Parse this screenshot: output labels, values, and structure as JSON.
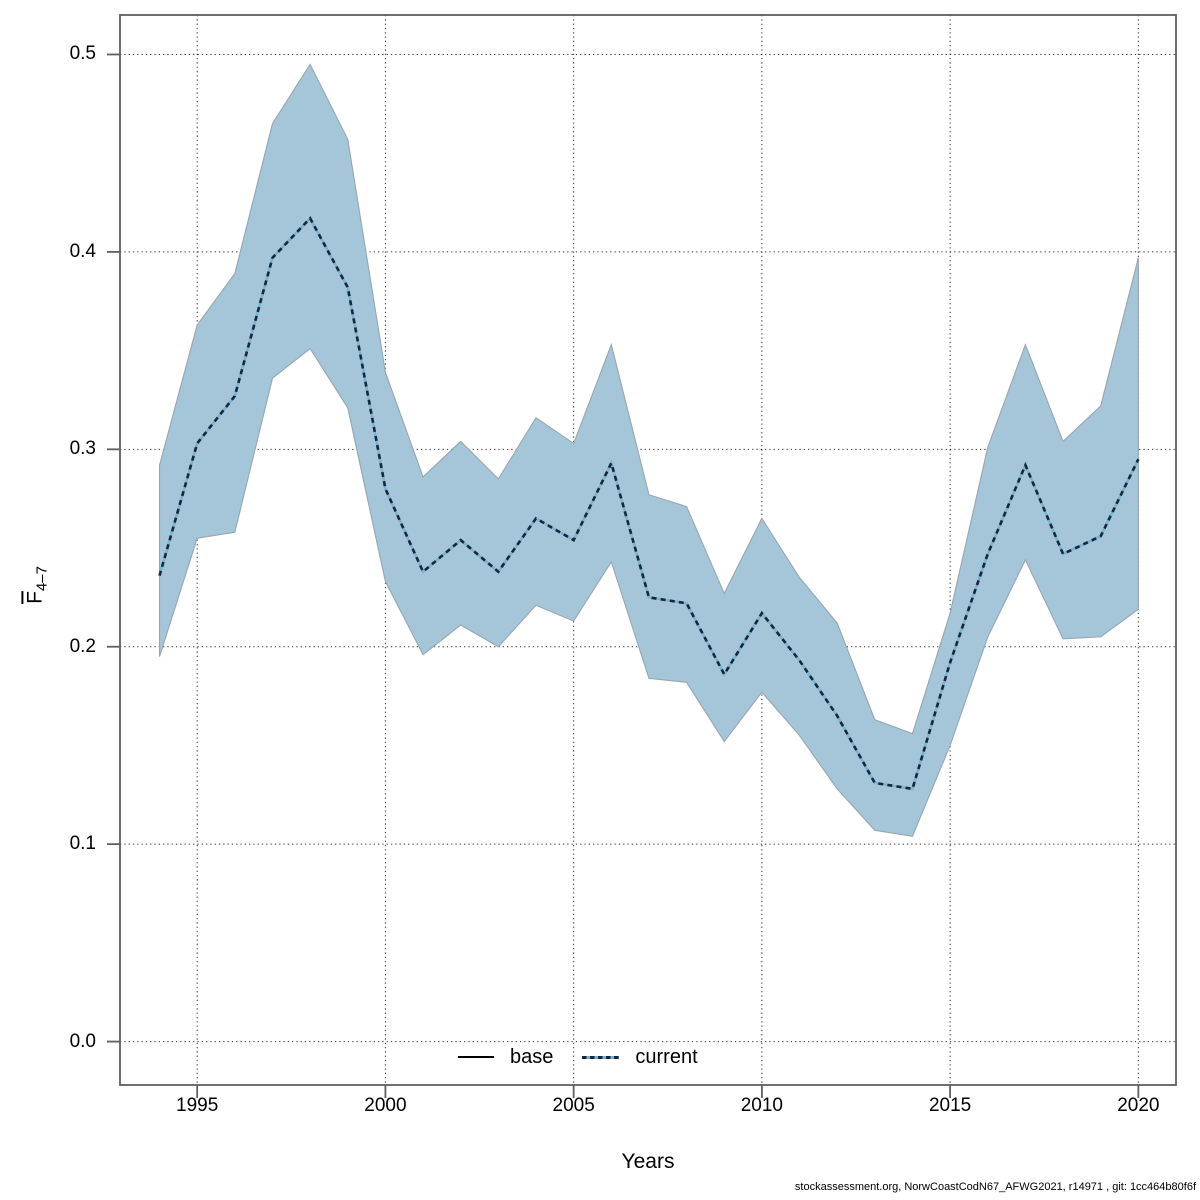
{
  "figure": {
    "footer_text": "stockassessment.org, NorwCoastCodN67_AFWG2021, r14971 , git: 1cc464b80f6f"
  },
  "chart_data": {
    "type": "line",
    "title": "",
    "xlabel": "Years",
    "ylabel_main": "F",
    "ylabel_sub": "4–7",
    "x": [
      1994,
      1995,
      1996,
      1997,
      1998,
      1999,
      2000,
      2001,
      2002,
      2003,
      2004,
      2005,
      2006,
      2007,
      2008,
      2009,
      2010,
      2011,
      2012,
      2013,
      2014,
      2015,
      2016,
      2017,
      2018,
      2019,
      2020
    ],
    "series": [
      {
        "name": "current",
        "style": "dashed",
        "values": [
          0.236,
          0.303,
          0.327,
          0.397,
          0.417,
          0.382,
          0.28,
          0.238,
          0.254,
          0.238,
          0.265,
          0.254,
          0.293,
          0.225,
          0.222,
          0.186,
          0.217,
          0.193,
          0.165,
          0.131,
          0.128,
          0.192,
          0.247,
          0.292,
          0.247,
          0.256,
          0.295
        ]
      }
    ],
    "band": {
      "name": "confidence-interval",
      "low": [
        0.195,
        0.255,
        0.258,
        0.336,
        0.351,
        0.321,
        0.233,
        0.196,
        0.211,
        0.2,
        0.221,
        0.213,
        0.243,
        0.184,
        0.182,
        0.152,
        0.177,
        0.155,
        0.128,
        0.107,
        0.104,
        0.15,
        0.205,
        0.244,
        0.204,
        0.205,
        0.219
      ],
      "high": [
        0.292,
        0.363,
        0.389,
        0.465,
        0.495,
        0.457,
        0.339,
        0.286,
        0.304,
        0.285,
        0.316,
        0.303,
        0.353,
        0.277,
        0.271,
        0.227,
        0.265,
        0.235,
        0.212,
        0.163,
        0.156,
        0.217,
        0.301,
        0.353,
        0.304,
        0.322,
        0.397
      ]
    },
    "xticks": [
      1995,
      2000,
      2005,
      2010,
      2015,
      2020
    ],
    "xtick_labels": [
      "1995",
      "2000",
      "2005",
      "2010",
      "2015",
      "2020"
    ],
    "yticks": [
      0.0,
      0.1,
      0.2,
      0.3,
      0.4,
      0.5
    ],
    "ytick_labels": [
      "0.0",
      "0.1",
      "0.2",
      "0.3",
      "0.4",
      "0.5"
    ],
    "xlim": [
      1992.95,
      2021.0
    ],
    "ylim": [
      -0.022,
      0.52
    ],
    "grid": "dotted",
    "legend_position": "bottom-center",
    "legend": {
      "entries": [
        {
          "label": "base",
          "style": "solid",
          "color": "#000000"
        },
        {
          "label": "current",
          "style": "dashed",
          "color": "#2e5f8a"
        }
      ]
    },
    "colors": {
      "band_fill": "#a4c6d8",
      "band_edge": "#97a6b0",
      "line_dash": "#172737",
      "line_underlay": "#79b4d6",
      "grid": "#000000",
      "frame": "#5f5f5f",
      "text": "#000000"
    }
  }
}
